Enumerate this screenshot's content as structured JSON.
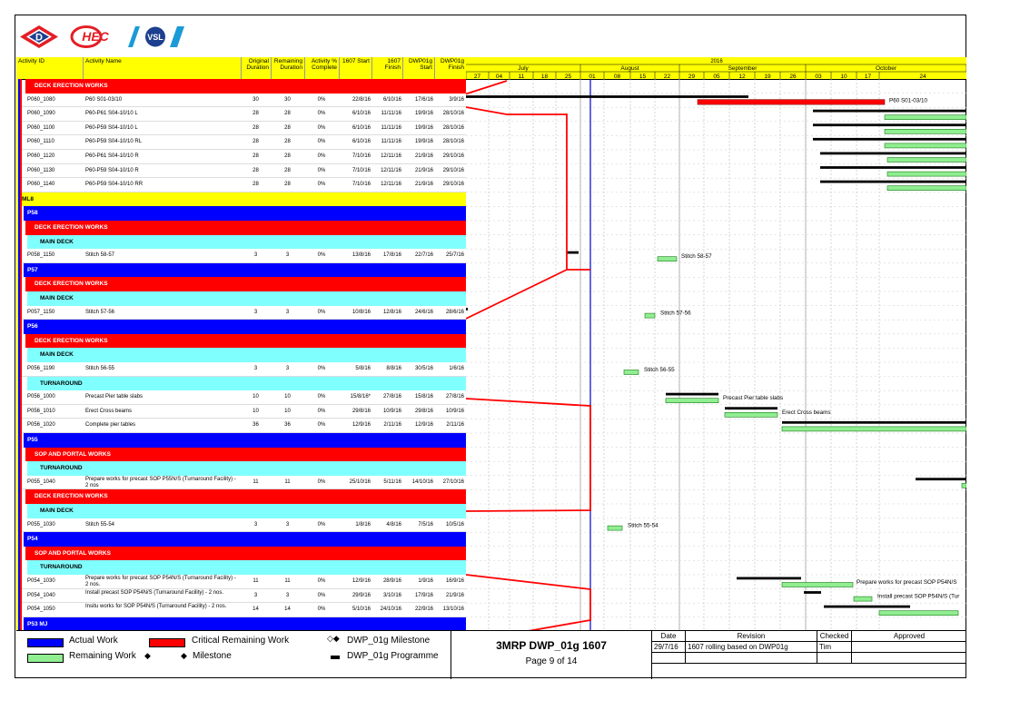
{
  "header": {
    "columns": [
      "Activity ID",
      "Activity Name",
      "Original Duration",
      "Remaining Duration",
      "Activity % Complete",
      "1607 Start",
      "1607 Finish",
      "DWP01g Start",
      "DWP01g Finish"
    ],
    "year": "2016",
    "months": [
      "July",
      "August",
      "September",
      "October"
    ],
    "weeks": [
      "27",
      "04",
      "11",
      "18",
      "25",
      "01",
      "08",
      "15",
      "22",
      "29",
      "05",
      "12",
      "19",
      "26",
      "03",
      "10",
      "17",
      "24"
    ]
  },
  "rows": [
    {
      "kind": "band",
      "color": "#ff0000",
      "indent": 2,
      "label": "DECK ERECTION WORKS"
    },
    {
      "kind": "act",
      "id": "P060_1080",
      "name": "P60 S01-03/10",
      "od": "30",
      "rd": "30",
      "pct": "0%",
      "s": "22/8/16",
      "f": "6/10/16",
      "ds": "17/6/16",
      "df": "3/9/16"
    },
    {
      "kind": "act",
      "id": "P060_1090",
      "name": "P60-P61 S04-10/10 L",
      "od": "28",
      "rd": "28",
      "pct": "0%",
      "s": "6/10/16",
      "f": "11/11/16",
      "ds": "19/9/16",
      "df": "28/10/16"
    },
    {
      "kind": "act",
      "id": "P060_1100",
      "name": "P60-P59 S04-10/10 L",
      "od": "28",
      "rd": "28",
      "pct": "0%",
      "s": "6/10/16",
      "f": "11/11/16",
      "ds": "19/9/16",
      "df": "28/10/16"
    },
    {
      "kind": "act",
      "id": "P060_1110",
      "name": "P60-P59 S04-10/10 RL",
      "od": "28",
      "rd": "28",
      "pct": "0%",
      "s": "6/10/16",
      "f": "11/11/16",
      "ds": "19/9/16",
      "df": "28/10/16"
    },
    {
      "kind": "act",
      "id": "P060_1120",
      "name": "P60-P61 S04-10/10 R",
      "od": "28",
      "rd": "28",
      "pct": "0%",
      "s": "7/10/16",
      "f": "12/11/16",
      "ds": "21/9/16",
      "df": "29/10/16"
    },
    {
      "kind": "act",
      "id": "P060_1130",
      "name": "P60-P59 S04-10/10 R",
      "od": "28",
      "rd": "28",
      "pct": "0%",
      "s": "7/10/16",
      "f": "12/11/16",
      "ds": "21/9/16",
      "df": "29/10/16"
    },
    {
      "kind": "act",
      "id": "P060_1140",
      "name": "P60-P59 S04-10/10 RR",
      "od": "28",
      "rd": "28",
      "pct": "0%",
      "s": "7/10/16",
      "f": "12/11/16",
      "ds": "21/9/16",
      "df": "29/10/16"
    },
    {
      "kind": "band",
      "color": "#ffff00",
      "indent": 0,
      "label": "ML8",
      "dark": true
    },
    {
      "kind": "band",
      "color": "#0000ff",
      "indent": 1,
      "label": "P58"
    },
    {
      "kind": "band",
      "color": "#ff0000",
      "indent": 2,
      "label": "DECK ERECTION WORKS"
    },
    {
      "kind": "band",
      "color": "#80ffff",
      "indent": 3,
      "label": "MAIN DECK",
      "dark": true
    },
    {
      "kind": "act",
      "id": "P058_1150",
      "name": "Stitch 58-57",
      "od": "3",
      "rd": "3",
      "pct": "0%",
      "s": "13/8/16",
      "f": "17/8/16",
      "ds": "22/7/16",
      "df": "25/7/16"
    },
    {
      "kind": "band",
      "color": "#0000ff",
      "indent": 1,
      "label": "P57"
    },
    {
      "kind": "band",
      "color": "#ff0000",
      "indent": 2,
      "label": "DECK ERECTION WORKS"
    },
    {
      "kind": "band",
      "color": "#80ffff",
      "indent": 3,
      "label": "MAIN DECK",
      "dark": true
    },
    {
      "kind": "act",
      "id": "P057_1150",
      "name": "Stitch 57-56",
      "od": "3",
      "rd": "3",
      "pct": "0%",
      "s": "10/8/16",
      "f": "12/8/16",
      "ds": "24/6/16",
      "df": "28/6/16"
    },
    {
      "kind": "band",
      "color": "#0000ff",
      "indent": 1,
      "label": "P56"
    },
    {
      "kind": "band",
      "color": "#ff0000",
      "indent": 2,
      "label": "DECK ERECTION WORKS"
    },
    {
      "kind": "band",
      "color": "#80ffff",
      "indent": 3,
      "label": "MAIN DECK",
      "dark": true
    },
    {
      "kind": "act",
      "id": "P056_1190",
      "name": "Stitch 56-55",
      "od": "3",
      "rd": "3",
      "pct": "0%",
      "s": "5/8/16",
      "f": "8/8/16",
      "ds": "30/5/16",
      "df": "1/6/16"
    },
    {
      "kind": "band",
      "color": "#80ffff",
      "indent": 3,
      "label": "TURNAROUND",
      "dark": true
    },
    {
      "kind": "act",
      "id": "P056_1000",
      "name": "Precast Pier table slabs",
      "od": "10",
      "rd": "10",
      "pct": "0%",
      "s": "15/8/16*",
      "f": "27/8/16",
      "ds": "15/8/16",
      "df": "27/8/16"
    },
    {
      "kind": "act",
      "id": "P056_1010",
      "name": "Erect Cross beams",
      "od": "10",
      "rd": "10",
      "pct": "0%",
      "s": "29/8/16",
      "f": "10/9/16",
      "ds": "29/8/16",
      "df": "10/9/16"
    },
    {
      "kind": "act",
      "id": "P056_1020",
      "name": "Complete pier tables",
      "od": "36",
      "rd": "36",
      "pct": "0%",
      "s": "12/9/16",
      "f": "2/11/16",
      "ds": "12/9/16",
      "df": "2/11/16"
    },
    {
      "kind": "band",
      "color": "#0000ff",
      "indent": 1,
      "label": "P55"
    },
    {
      "kind": "band",
      "color": "#ff0000",
      "indent": 2,
      "label": "SOP AND PORTAL WORKS"
    },
    {
      "kind": "band",
      "color": "#80ffff",
      "indent": 3,
      "label": "TURNAROUND",
      "dark": true
    },
    {
      "kind": "act",
      "id": "P055_1040",
      "name": "Prepare works for precast SOP P55N/S (Turnaround Facility) - 2 nos",
      "od": "11",
      "rd": "11",
      "pct": "0%",
      "s": "25/10/16",
      "f": "5/11/16",
      "ds": "14/10/16",
      "df": "27/10/16",
      "wrap": true
    },
    {
      "kind": "band",
      "color": "#ff0000",
      "indent": 2,
      "label": "DECK ERECTION WORKS"
    },
    {
      "kind": "band",
      "color": "#80ffff",
      "indent": 3,
      "label": "MAIN DECK",
      "dark": true
    },
    {
      "kind": "act",
      "id": "P055_1030",
      "name": "Stitch 55-54",
      "od": "3",
      "rd": "3",
      "pct": "0%",
      "s": "1/8/16",
      "f": "4/8/16",
      "ds": "7/5/16",
      "df": "10/5/16"
    },
    {
      "kind": "band",
      "color": "#0000ff",
      "indent": 1,
      "label": "P54"
    },
    {
      "kind": "band",
      "color": "#ff0000",
      "indent": 2,
      "label": "SOP AND PORTAL WORKS"
    },
    {
      "kind": "band",
      "color": "#80ffff",
      "indent": 3,
      "label": "TURNAROUND",
      "dark": true
    },
    {
      "kind": "act",
      "id": "P054_1030",
      "name": "Prepare works for precast SOP P54N/S (Turnaround Facility) - 2 nos.",
      "od": "11",
      "rd": "11",
      "pct": "0%",
      "s": "12/9/16",
      "f": "28/9/16",
      "ds": "1/9/16",
      "df": "16/9/16",
      "wrap": true
    },
    {
      "kind": "act",
      "id": "P054_1040",
      "name": "Install precast SOP P54N/S (Turnaround Facility) - 2 nos.",
      "od": "3",
      "rd": "3",
      "pct": "0%",
      "s": "29/9/16",
      "f": "3/10/16",
      "ds": "17/9/16",
      "df": "21/9/16",
      "wrap": true
    },
    {
      "kind": "act",
      "id": "P054_1050",
      "name": "Insitu works for SOP P54N/S (Turnaround Facility) - 2 nos.",
      "od": "14",
      "rd": "14",
      "pct": "0%",
      "s": "5/10/16",
      "f": "24/10/16",
      "ds": "22/9/16",
      "df": "13/10/16",
      "wrap": true
    },
    {
      "kind": "band",
      "color": "#0000ff",
      "indent": 1,
      "label": "P53 MJ"
    }
  ],
  "bar_labels": [
    "P60 S01-03/10",
    "Stitch 58-57",
    "Stitch 57-56",
    "Stitch 56-55",
    "Precast Pier table slabs",
    "Erect Cross beams",
    "Prepare works for precast SOP P55N/S (Turnaround Facility) - 2 nos",
    "Stitch 55-54",
    "Prepare works for precast SOP P54N/S",
    "Install precast SOP P54N/S (Tur"
  ],
  "legend": {
    "actual_work": "Actual Work",
    "critical_remaining": "Critical Remaining Work",
    "dwp_milestone": "DWP_01g Milestone",
    "remaining_work": "Remaining Work",
    "milestone": "Milestone",
    "dwp_programme": "DWP_01g Programme"
  },
  "title_block": {
    "title": "3MRP DWP_01g 1607",
    "page": "Page 9 of 14",
    "rev_headers": [
      "Date",
      "Revision",
      "Checked",
      "Approved"
    ],
    "rev_date": "29/7/16",
    "rev_text": "1607 rolling based on DWP01g",
    "rev_checked": "Tim",
    "rev_approved": ""
  },
  "colors": {
    "header_yellow": "#ffff00",
    "critical_red": "#ff0000",
    "actual_blue": "#0000ff",
    "remaining_green": "#90ee90",
    "band_cyan": "#80ffff",
    "data_date_line": "#0000cc"
  }
}
